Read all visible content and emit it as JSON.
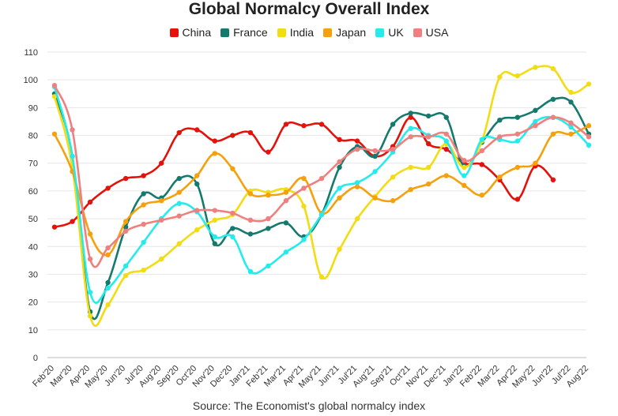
{
  "chart_data": {
    "type": "line",
    "title": "Global Normalcy Overall Index",
    "source": "Source: The Economist's global normalcy index",
    "xlabel": "",
    "ylabel": "",
    "ylim": [
      0,
      110
    ],
    "yticks": [
      0,
      10,
      20,
      30,
      40,
      50,
      60,
      70,
      80,
      90,
      100,
      110
    ],
    "grid": "horizontal",
    "legend_position": "top",
    "categories": [
      "Feb'20",
      "Mar'20",
      "Apr'20",
      "May'20",
      "Jun'20",
      "Jul'20",
      "Aug'20",
      "Sep'20",
      "Oct'20",
      "Nov'20",
      "Dec'20",
      "Jan'21",
      "Feb'21",
      "Mar'21",
      "Apr'21",
      "May'21",
      "Jun'21",
      "Jul'21",
      "Aug'21",
      "Sep'21",
      "Oct'21",
      "Nov'21",
      "Dec'21",
      "Jan'22",
      "Feb'22",
      "Mar'22",
      "Apr'22",
      "May'22",
      "Jun'22",
      "Jul'22",
      "Aug'22"
    ],
    "series": [
      {
        "name": "China",
        "color": "#e3120b",
        "values": [
          47,
          49,
          56,
          61,
          64.5,
          65.5,
          70,
          81,
          82,
          78,
          80,
          81,
          74,
          84,
          83.5,
          84,
          78.5,
          78,
          72.5,
          76,
          86.5,
          77,
          75,
          70,
          69.5,
          64,
          57,
          69,
          64,
          null,
          null
        ]
      },
      {
        "name": "France",
        "color": "#157a6e",
        "values": [
          95,
          72.5,
          16.5,
          27,
          47,
          59,
          57.5,
          64.5,
          62.5,
          41,
          46.5,
          44.5,
          46.5,
          48.5,
          43.5,
          51.5,
          68.5,
          76,
          72.5,
          84,
          88,
          87,
          86.5,
          69,
          77.5,
          85.5,
          86.5,
          89,
          93,
          92,
          80.5
        ]
      },
      {
        "name": "India",
        "color": "#f2dc13",
        "values": [
          94,
          68.5,
          15,
          19,
          29.5,
          31.5,
          35.5,
          41,
          46,
          49.5,
          51.5,
          60,
          59.5,
          60.5,
          54.5,
          29,
          39,
          50,
          58,
          65,
          68.5,
          68.5,
          77,
          68.5,
          78,
          101,
          101.5,
          104.5,
          104,
          95.5,
          98.5
        ]
      },
      {
        "name": "Japan",
        "color": "#f5a00d",
        "values": [
          80.5,
          67,
          44.5,
          37,
          49,
          55,
          56.5,
          59.5,
          65.5,
          73.5,
          68,
          59,
          58.5,
          59.5,
          64.5,
          52,
          57.5,
          61.5,
          57.5,
          56.5,
          60.5,
          62.5,
          65.5,
          62,
          58.5,
          65,
          68.5,
          70,
          80.5,
          80.5,
          83.5
        ]
      },
      {
        "name": "UK",
        "color": "#26ebec",
        "values": [
          97.5,
          72.5,
          23.5,
          25,
          33,
          41.5,
          50,
          55.5,
          52.5,
          43.5,
          43.5,
          31,
          33,
          38,
          42.5,
          51.5,
          61,
          63,
          67,
          74,
          82.5,
          80,
          78,
          65.5,
          78.5,
          78.5,
          78,
          85,
          86.5,
          83,
          76.5
        ]
      },
      {
        "name": "USA",
        "color": "#f07f7f",
        "values": [
          98,
          82,
          35.5,
          39.5,
          45.5,
          48,
          49.5,
          51,
          53,
          53,
          52,
          49.5,
          50,
          56.5,
          61,
          64.5,
          70.5,
          75,
          74.5,
          75,
          79.5,
          79.5,
          80.5,
          71,
          74.5,
          79.5,
          80.5,
          83.5,
          86.5,
          84.5,
          79.5
        ]
      }
    ]
  }
}
